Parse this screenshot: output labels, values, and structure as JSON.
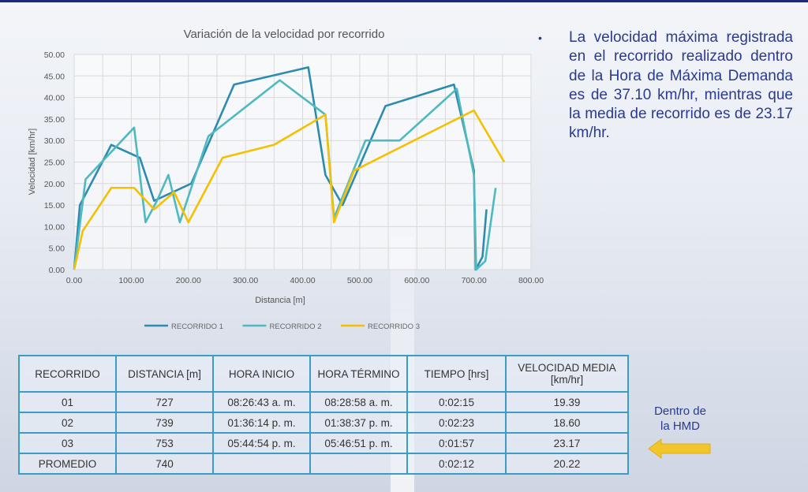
{
  "slide": {
    "bullet_text": "La velocidad máxima registrada en el recorrido realizado dentro de la Hora de Máxima Demanda es de 37.10 km/hr, mientras que la media de recorrido es de 23.17 km/hr.",
    "callout": [
      "Dentro de",
      "la HMD"
    ],
    "colors": {
      "title_bar": "#1e2a78",
      "text": "#2b3a8f",
      "table_border": "#3d9cc4",
      "arrow": "#f5c518"
    }
  },
  "table": {
    "headers": [
      "RECORRIDO",
      "DISTANCIA [m]",
      "HORA INICIO",
      "HORA TÉRMINO",
      "TIEMPO [hrs]",
      "VELOCIDAD MEDIA [km/hr]"
    ],
    "rows": [
      [
        "01",
        "727",
        "08:26:43 a. m.",
        "08:28:58 a. m.",
        "0:02:15",
        "19.39"
      ],
      [
        "02",
        "739",
        "01:36:14 p. m.",
        "01:38:37 p. m.",
        "0:02:23",
        "18.60"
      ],
      [
        "03",
        "753",
        "05:44:54 p. m.",
        "05:46:51 p. m.",
        "0:01:57",
        "23.17"
      ],
      [
        "PROMEDIO",
        "740",
        "",
        "",
        "0:02:12",
        "20.22"
      ]
    ]
  },
  "chart_data": {
    "type": "line",
    "title": "Variación de la velocidad por recorrido",
    "xlabel": "Distancia [m]",
    "ylabel": "Velocidad [km/hr]",
    "xlim": [
      0,
      800
    ],
    "ylim": [
      0,
      50
    ],
    "xticks": [
      "0.00",
      "100.00",
      "200.00",
      "300.00",
      "400.00",
      "500.00",
      "600.00",
      "700.00",
      "800.00"
    ],
    "yticks": [
      "0.00",
      "5.00",
      "10.00",
      "15.00",
      "20.00",
      "25.00",
      "30.00",
      "35.00",
      "40.00",
      "45.00",
      "50.00"
    ],
    "grid": true,
    "legend_position": "bottom",
    "series": [
      {
        "name": "RECORRIDO 1",
        "color": "#2e8bb0",
        "points": [
          [
            0,
            0
          ],
          [
            10,
            15
          ],
          [
            65,
            29
          ],
          [
            115,
            26
          ],
          [
            140,
            16
          ],
          [
            205,
            20
          ],
          [
            280,
            43
          ],
          [
            410,
            47
          ],
          [
            440,
            22
          ],
          [
            470,
            15
          ],
          [
            545,
            38
          ],
          [
            665,
            43
          ],
          [
            700,
            23
          ],
          [
            703,
            0
          ],
          [
            715,
            3
          ],
          [
            722,
            14
          ]
        ]
      },
      {
        "name": "RECORRIDO 2",
        "color": "#4fb9c0",
        "points": [
          [
            0,
            0
          ],
          [
            20,
            21
          ],
          [
            105,
            33
          ],
          [
            125,
            11
          ],
          [
            145,
            16
          ],
          [
            165,
            22
          ],
          [
            185,
            11
          ],
          [
            235,
            31
          ],
          [
            360,
            44
          ],
          [
            440,
            36
          ],
          [
            455,
            12
          ],
          [
            510,
            30
          ],
          [
            570,
            30
          ],
          [
            670,
            42
          ],
          [
            700,
            22
          ],
          [
            704,
            0
          ],
          [
            720,
            2
          ],
          [
            738,
            19
          ]
        ]
      },
      {
        "name": "RECORRIDO 3",
        "color": "#f5c000",
        "points": [
          [
            0,
            0
          ],
          [
            15,
            9
          ],
          [
            65,
            19
          ],
          [
            105,
            19
          ],
          [
            140,
            14
          ],
          [
            175,
            18
          ],
          [
            200,
            11
          ],
          [
            260,
            26
          ],
          [
            350,
            29
          ],
          [
            440,
            36
          ],
          [
            455,
            11
          ],
          [
            490,
            23
          ],
          [
            700,
            37
          ],
          [
            753,
            25
          ]
        ]
      }
    ]
  }
}
